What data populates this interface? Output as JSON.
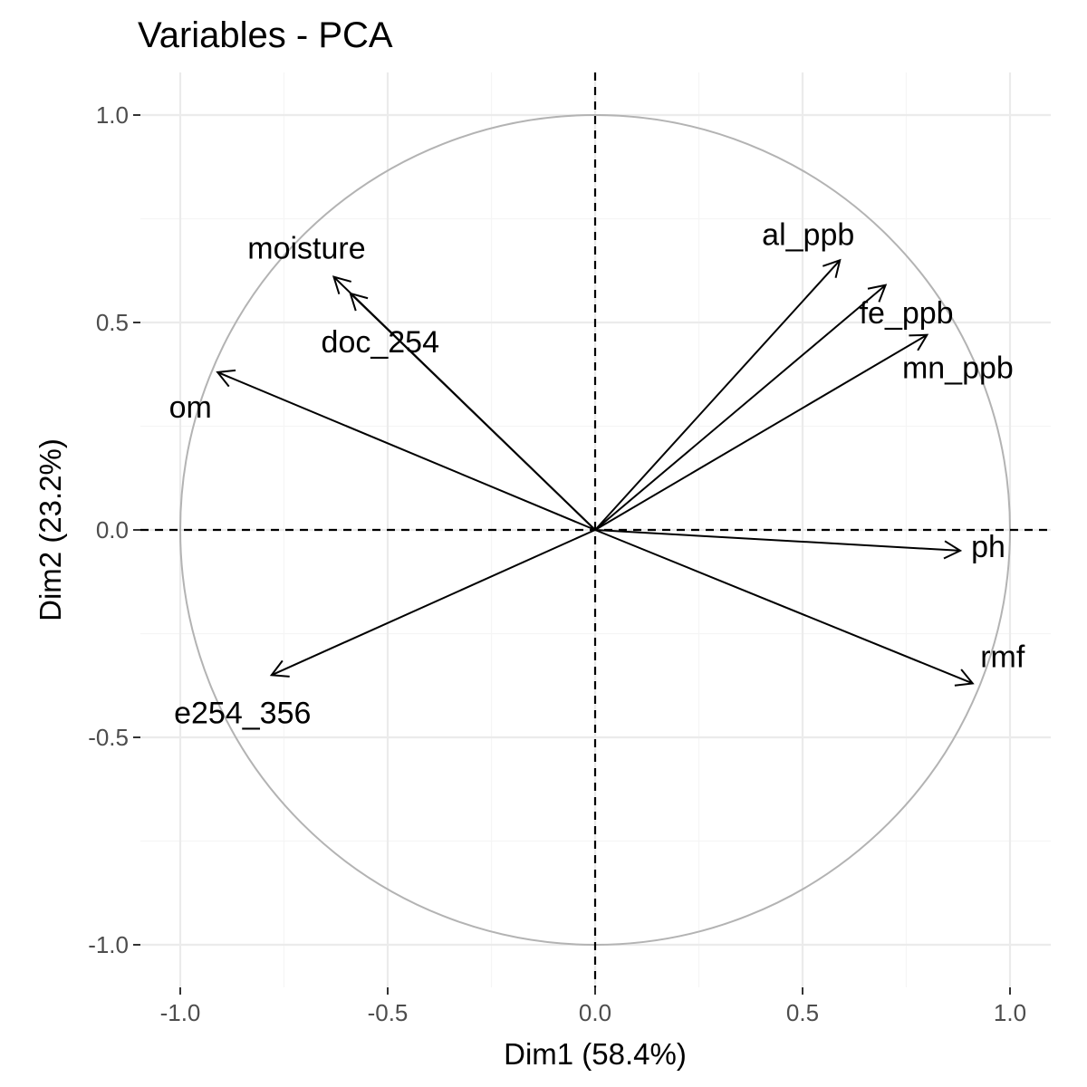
{
  "chart_data": {
    "type": "scatter",
    "subtype": "pca-variable-correlation-circle",
    "title": "Variables - PCA",
    "xlabel": "Dim1 (58.4%)",
    "ylabel": "Dim2 (23.2%)",
    "xlim": [
      -1.1,
      1.1
    ],
    "ylim": [
      -1.1,
      1.1
    ],
    "x_ticks": [
      "-1.0",
      "-0.5",
      "0.0",
      "0.5",
      "1.0"
    ],
    "y_ticks": [
      "-1.0",
      "-0.5",
      "0.0",
      "0.5",
      "1.0"
    ],
    "grid": true,
    "unit_circle": true,
    "reference_lines": "dashed at x=0 and y=0",
    "variables": [
      {
        "name": "moisture",
        "x": -0.63,
        "y": 0.61
      },
      {
        "name": "doc_254",
        "x": -0.59,
        "y": 0.57
      },
      {
        "name": "om",
        "x": -0.91,
        "y": 0.38
      },
      {
        "name": "al_ppb",
        "x": 0.59,
        "y": 0.65
      },
      {
        "name": "fe_ppb",
        "x": 0.7,
        "y": 0.59
      },
      {
        "name": "mn_ppb",
        "x": 0.8,
        "y": 0.47
      },
      {
        "name": "ph",
        "x": 0.88,
        "y": -0.05
      },
      {
        "name": "rmf",
        "x": 0.91,
        "y": -0.37
      },
      {
        "name": "e254_356",
        "x": -0.78,
        "y": -0.35
      }
    ],
    "colors": {
      "background": "#ffffff",
      "grid_major": "#ebebeb",
      "grid_minor": "#f5f5f5",
      "circle": "#b3b3b3",
      "arrow": "#000000",
      "tick_text": "#4d4d4d"
    }
  }
}
